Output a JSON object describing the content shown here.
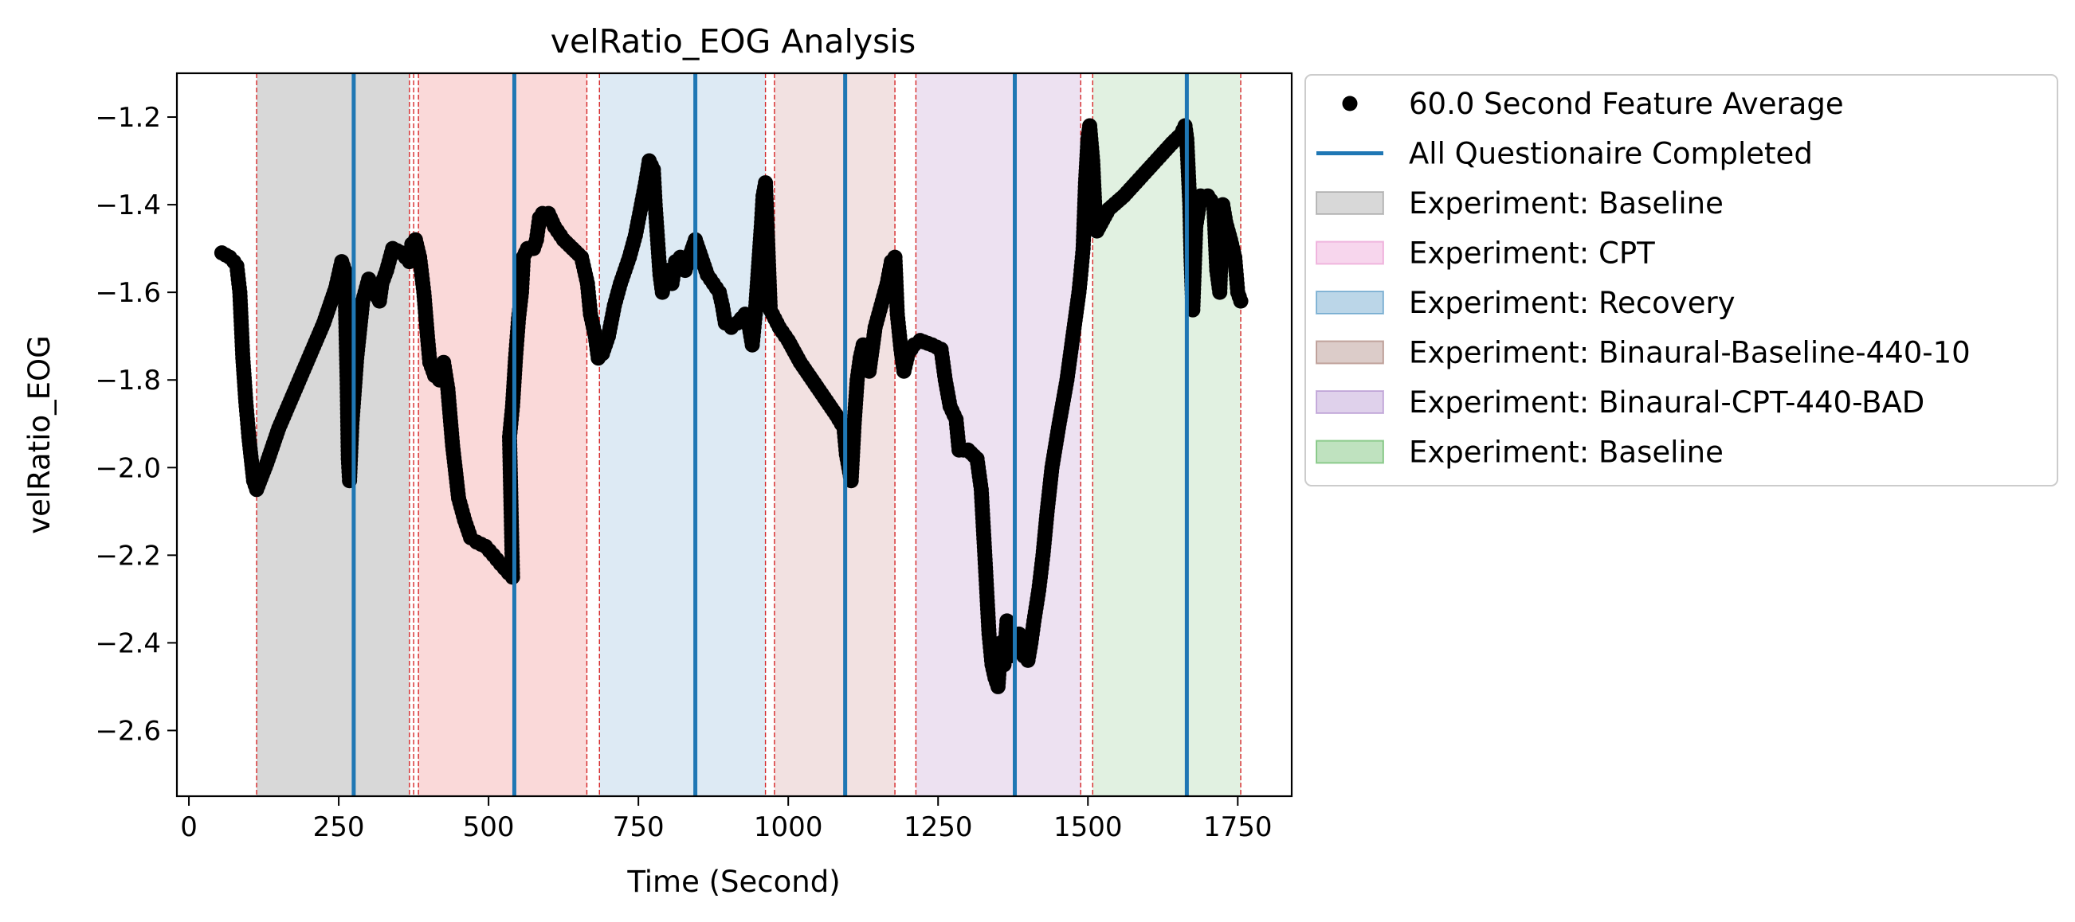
{
  "chart_data": {
    "type": "scatter",
    "title": "velRatio_EOG Analysis",
    "xlabel": "Time (Second)",
    "ylabel": "velRatio_EOG",
    "xlim": [
      -20,
      1840
    ],
    "ylim": [
      -2.75,
      -1.1
    ],
    "xticks": [
      0,
      250,
      500,
      750,
      1000,
      1250,
      1500,
      1750
    ],
    "xtick_labels": [
      "0",
      "250",
      "500",
      "750",
      "1000",
      "1250",
      "1500",
      "1750"
    ],
    "yticks": [
      -1.2,
      -1.4,
      -1.6,
      -1.8,
      -2.0,
      -2.2,
      -2.4,
      -2.6
    ],
    "ytick_labels": [
      "−1.2",
      "−1.4",
      "−1.6",
      "−1.8",
      "−2.0",
      "−2.2",
      "−2.4",
      "−2.6"
    ],
    "grid": false,
    "legend_position": "outside-right",
    "legend": [
      {
        "label": "60.0 Second Feature Average",
        "kind": "marker",
        "color": "#000000"
      },
      {
        "label": "All Questionaire Completed",
        "kind": "line",
        "color": "#1f77b4"
      },
      {
        "label": "Experiment: Baseline",
        "kind": "patch",
        "color": "#7f7f7f"
      },
      {
        "label": "Experiment: CPT",
        "kind": "patch",
        "color": "#e377c2"
      },
      {
        "label": "Experiment: Recovery",
        "kind": "patch",
        "color": "#1f77b4"
      },
      {
        "label": "Experiment: Binaural-Baseline-440-10",
        "kind": "patch",
        "color": "#8c564b"
      },
      {
        "label": "Experiment: Binaural-CPT-440-BAD",
        "kind": "patch",
        "color": "#9467bd"
      },
      {
        "label": "Experiment: Baseline",
        "kind": "patch",
        "color": "#2ca02c"
      }
    ],
    "regions": [
      {
        "label": "Experiment: Baseline",
        "start": 113,
        "end": 368,
        "color": "#7f7f7f"
      },
      {
        "label": "Experiment: CPT",
        "start": 383,
        "end": 664,
        "color": "#f08080"
      },
      {
        "label": "Experiment: Recovery",
        "start": 685,
        "end": 962,
        "color": "#8fb9dc"
      },
      {
        "label": "Experiment: Binaural-Baseline-440-10",
        "start": 977,
        "end": 1178,
        "color": "#d39a9a"
      },
      {
        "label": "Experiment: Binaural-CPT-440-BAD",
        "start": 1213,
        "end": 1488,
        "color": "#c49ad0"
      },
      {
        "label": "Experiment: Baseline",
        "start": 1508,
        "end": 1755,
        "color": "#9ccf9c"
      }
    ],
    "boundary_lines": [
      113,
      368,
      375,
      383,
      664,
      685,
      962,
      977,
      1178,
      1213,
      1488,
      1508,
      1755
    ],
    "questionnaire_lines": [
      275,
      543,
      845,
      1095,
      1378,
      1665
    ],
    "series": [
      {
        "name": "60.0 Second Feature Average",
        "color": "#000000",
        "marker": "circle",
        "points": [
          [
            55,
            -1.51
          ],
          [
            68,
            -1.52
          ],
          [
            75,
            -1.53
          ],
          [
            80,
            -1.54
          ],
          [
            85,
            -1.6
          ],
          [
            90,
            -1.75
          ],
          [
            95,
            -1.85
          ],
          [
            100,
            -1.93
          ],
          [
            108,
            -2.03
          ],
          [
            113,
            -2.05
          ],
          [
            130,
            -1.99
          ],
          [
            150,
            -1.91
          ],
          [
            175,
            -1.83
          ],
          [
            200,
            -1.75
          ],
          [
            225,
            -1.67
          ],
          [
            245,
            -1.59
          ],
          [
            255,
            -1.53
          ],
          [
            260,
            -1.55
          ],
          [
            264,
            -1.8
          ],
          [
            266,
            -1.98
          ],
          [
            268,
            -2.03
          ],
          [
            272,
            -1.9
          ],
          [
            280,
            -1.75
          ],
          [
            290,
            -1.62
          ],
          [
            300,
            -1.57
          ],
          [
            310,
            -1.6
          ],
          [
            318,
            -1.62
          ],
          [
            322,
            -1.58
          ],
          [
            330,
            -1.55
          ],
          [
            340,
            -1.5
          ],
          [
            355,
            -1.51
          ],
          [
            368,
            -1.53
          ],
          [
            372,
            -1.49
          ],
          [
            378,
            -1.48
          ],
          [
            385,
            -1.52
          ],
          [
            392,
            -1.6
          ],
          [
            398,
            -1.7
          ],
          [
            402,
            -1.76
          ],
          [
            410,
            -1.79
          ],
          [
            418,
            -1.8
          ],
          [
            425,
            -1.76
          ],
          [
            432,
            -1.82
          ],
          [
            440,
            -1.95
          ],
          [
            450,
            -2.07
          ],
          [
            460,
            -2.12
          ],
          [
            470,
            -2.16
          ],
          [
            480,
            -2.17
          ],
          [
            495,
            -2.18
          ],
          [
            508,
            -2.2
          ],
          [
            520,
            -2.22
          ],
          [
            533,
            -2.24
          ],
          [
            540,
            -2.25
          ],
          [
            535,
            -1.93
          ],
          [
            540,
            -1.86
          ],
          [
            545,
            -1.75
          ],
          [
            550,
            -1.66
          ],
          [
            555,
            -1.6
          ],
          [
            558,
            -1.52
          ],
          [
            565,
            -1.5
          ],
          [
            575,
            -1.5
          ],
          [
            580,
            -1.48
          ],
          [
            585,
            -1.43
          ],
          [
            590,
            -1.42
          ],
          [
            600,
            -1.42
          ],
          [
            610,
            -1.45
          ],
          [
            625,
            -1.48
          ],
          [
            640,
            -1.5
          ],
          [
            655,
            -1.52
          ],
          [
            660,
            -1.55
          ],
          [
            665,
            -1.58
          ],
          [
            670,
            -1.65
          ],
          [
            678,
            -1.7
          ],
          [
            683,
            -1.75
          ],
          [
            690,
            -1.74
          ],
          [
            700,
            -1.7
          ],
          [
            710,
            -1.63
          ],
          [
            720,
            -1.58
          ],
          [
            735,
            -1.52
          ],
          [
            745,
            -1.47
          ],
          [
            755,
            -1.4
          ],
          [
            762,
            -1.35
          ],
          [
            768,
            -1.3
          ],
          [
            775,
            -1.32
          ],
          [
            778,
            -1.4
          ],
          [
            782,
            -1.48
          ],
          [
            786,
            -1.56
          ],
          [
            790,
            -1.6
          ],
          [
            798,
            -1.55
          ],
          [
            806,
            -1.58
          ],
          [
            812,
            -1.53
          ],
          [
            820,
            -1.52
          ],
          [
            828,
            -1.55
          ],
          [
            835,
            -1.52
          ],
          [
            845,
            -1.48
          ],
          [
            855,
            -1.52
          ],
          [
            865,
            -1.56
          ],
          [
            875,
            -1.58
          ],
          [
            885,
            -1.6
          ],
          [
            890,
            -1.63
          ],
          [
            895,
            -1.67
          ],
          [
            905,
            -1.68
          ],
          [
            915,
            -1.67
          ],
          [
            928,
            -1.65
          ],
          [
            935,
            -1.68
          ],
          [
            940,
            -1.72
          ],
          [
            945,
            -1.65
          ],
          [
            950,
            -1.55
          ],
          [
            955,
            -1.45
          ],
          [
            958,
            -1.38
          ],
          [
            962,
            -1.35
          ],
          [
            970,
            -1.64
          ],
          [
            985,
            -1.68
          ],
          [
            1000,
            -1.71
          ],
          [
            1020,
            -1.76
          ],
          [
            1040,
            -1.8
          ],
          [
            1060,
            -1.84
          ],
          [
            1080,
            -1.88
          ],
          [
            1093,
            -1.91
          ],
          [
            1097,
            -1.97
          ],
          [
            1105,
            -2.03
          ],
          [
            1110,
            -1.9
          ],
          [
            1115,
            -1.8
          ],
          [
            1120,
            -1.75
          ],
          [
            1125,
            -1.72
          ],
          [
            1135,
            -1.78
          ],
          [
            1145,
            -1.68
          ],
          [
            1155,
            -1.63
          ],
          [
            1165,
            -1.58
          ],
          [
            1172,
            -1.53
          ],
          [
            1178,
            -1.52
          ],
          [
            1182,
            -1.65
          ],
          [
            1188,
            -1.73
          ],
          [
            1193,
            -1.78
          ],
          [
            1200,
            -1.74
          ],
          [
            1210,
            -1.72
          ],
          [
            1220,
            -1.71
          ],
          [
            1240,
            -1.72
          ],
          [
            1255,
            -1.73
          ],
          [
            1262,
            -1.8
          ],
          [
            1270,
            -1.86
          ],
          [
            1280,
            -1.89
          ],
          [
            1285,
            -1.96
          ],
          [
            1300,
            -1.96
          ],
          [
            1315,
            -1.98
          ],
          [
            1322,
            -2.05
          ],
          [
            1328,
            -2.2
          ],
          [
            1335,
            -2.38
          ],
          [
            1340,
            -2.45
          ],
          [
            1345,
            -2.48
          ],
          [
            1350,
            -2.5
          ],
          [
            1355,
            -2.4
          ],
          [
            1360,
            -2.45
          ],
          [
            1365,
            -2.35
          ],
          [
            1370,
            -2.43
          ],
          [
            1378,
            -2.4
          ],
          [
            1385,
            -2.38
          ],
          [
            1393,
            -2.43
          ],
          [
            1400,
            -2.44
          ],
          [
            1405,
            -2.4
          ],
          [
            1410,
            -2.35
          ],
          [
            1418,
            -2.28
          ],
          [
            1425,
            -2.2
          ],
          [
            1432,
            -2.1
          ],
          [
            1440,
            -2.0
          ],
          [
            1452,
            -1.9
          ],
          [
            1465,
            -1.8
          ],
          [
            1475,
            -1.7
          ],
          [
            1485,
            -1.6
          ],
          [
            1488,
            -1.56
          ],
          [
            1492,
            -1.5
          ],
          [
            1496,
            -1.35
          ],
          [
            1500,
            -1.25
          ],
          [
            1503,
            -1.22
          ],
          [
            1508,
            -1.3
          ],
          [
            1512,
            -1.42
          ],
          [
            1515,
            -1.46
          ],
          [
            1535,
            -1.41
          ],
          [
            1560,
            -1.38
          ],
          [
            1580,
            -1.35
          ],
          [
            1600,
            -1.32
          ],
          [
            1620,
            -1.29
          ],
          [
            1640,
            -1.26
          ],
          [
            1655,
            -1.24
          ],
          [
            1662,
            -1.22
          ],
          [
            1665,
            -1.25
          ],
          [
            1670,
            -1.4
          ],
          [
            1672,
            -1.52
          ],
          [
            1675,
            -1.64
          ],
          [
            1680,
            -1.45
          ],
          [
            1688,
            -1.38
          ],
          [
            1700,
            -1.38
          ],
          [
            1710,
            -1.4
          ],
          [
            1715,
            -1.55
          ],
          [
            1720,
            -1.6
          ],
          [
            1725,
            -1.4
          ],
          [
            1730,
            -1.44
          ],
          [
            1738,
            -1.48
          ],
          [
            1745,
            -1.52
          ],
          [
            1750,
            -1.6
          ],
          [
            1755,
            -1.62
          ]
        ]
      }
    ]
  }
}
